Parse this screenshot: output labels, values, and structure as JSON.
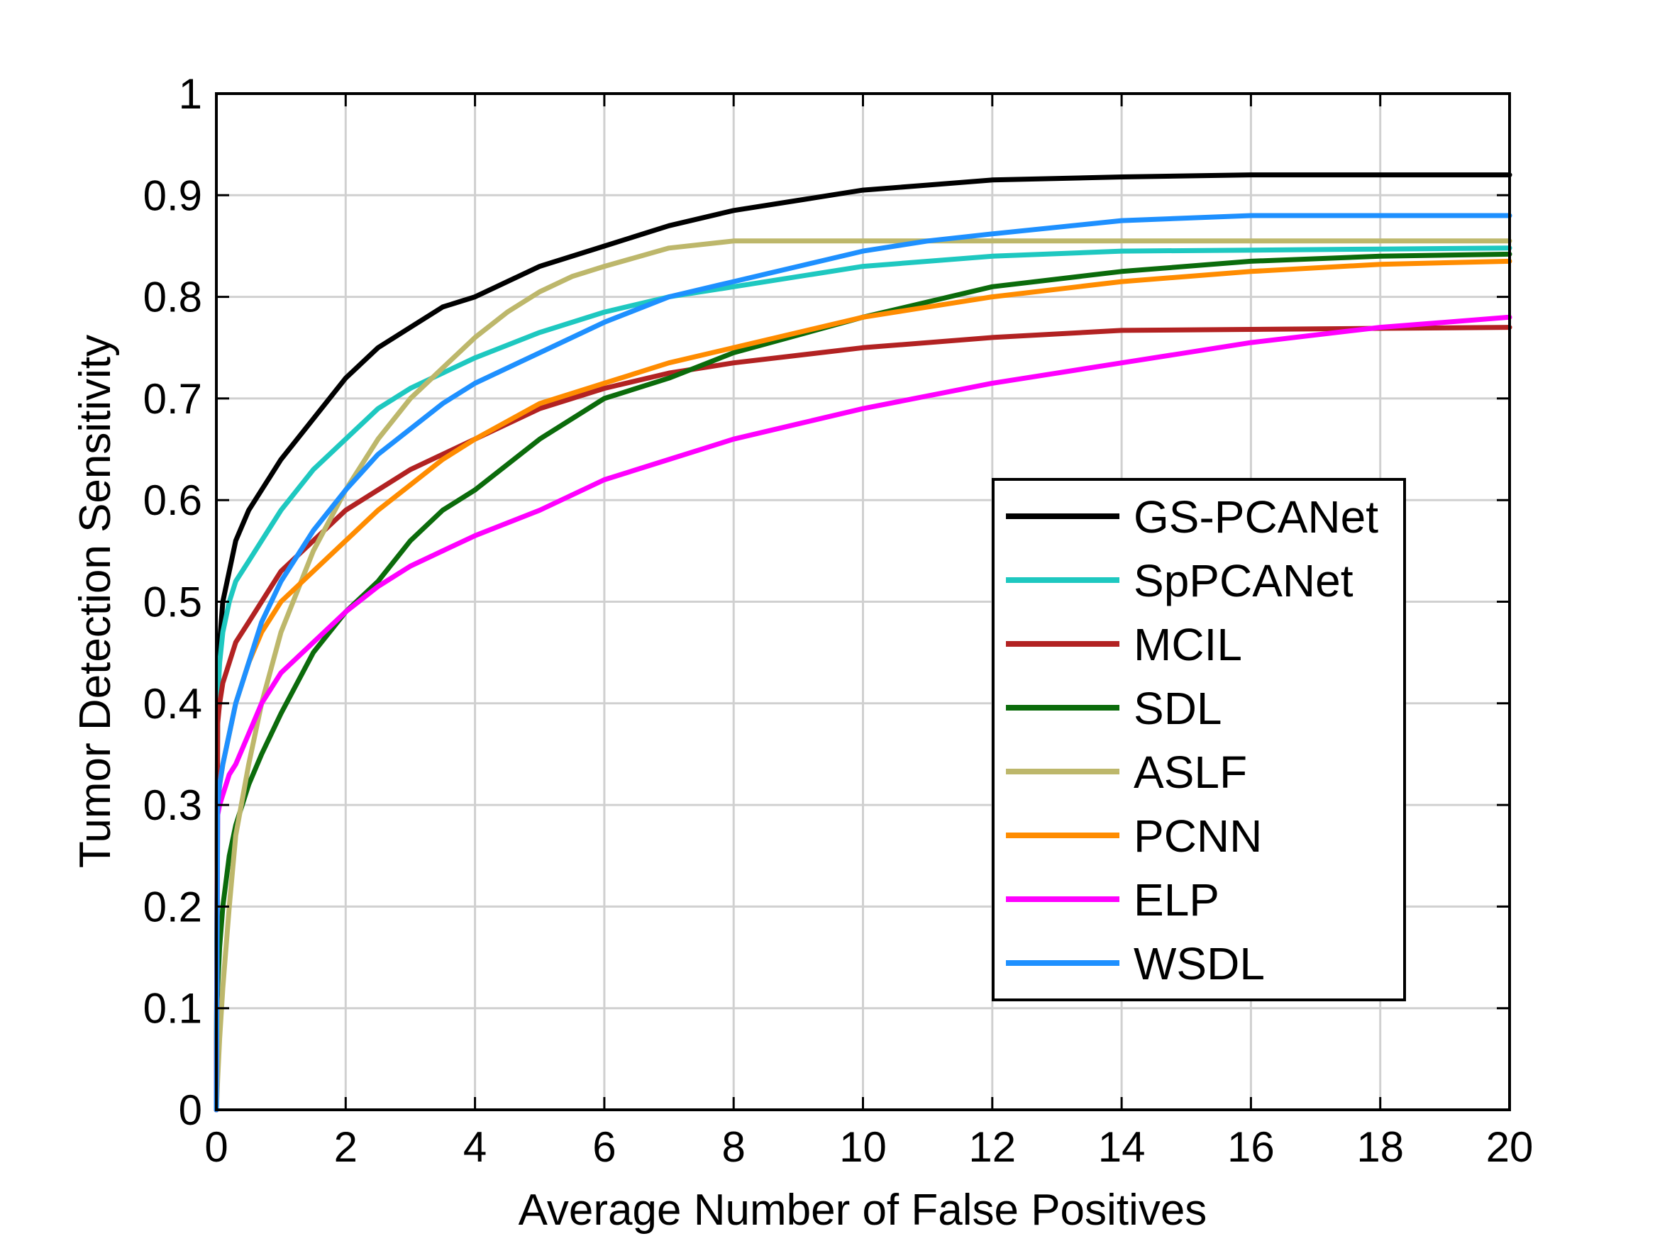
{
  "chart_data": {
    "type": "line",
    "xlabel": "Average Number of False Positives",
    "ylabel": "Tumor Detection Sensitivity",
    "xlim": [
      0,
      20
    ],
    "ylim": [
      0,
      1
    ],
    "xticks": [
      "0",
      "2",
      "4",
      "6",
      "8",
      "10",
      "12",
      "14",
      "16",
      "18",
      "20"
    ],
    "yticks": [
      "0",
      "0.1",
      "0.2",
      "0.3",
      "0.4",
      "0.5",
      "0.6",
      "0.7",
      "0.8",
      "0.9",
      "1"
    ],
    "grid": true,
    "legend_position": "right",
    "series": [
      {
        "name": "GS-PCANet",
        "color": "#000000",
        "x": [
          0,
          0.02,
          0.05,
          0.1,
          0.2,
          0.3,
          0.5,
          0.7,
          1.0,
          1.5,
          2.0,
          2.5,
          3.0,
          3.5,
          4.0,
          4.5,
          5.0,
          6.0,
          7.0,
          8.0,
          9.0,
          10.0,
          11.0,
          12.0,
          14.0,
          16.0,
          18.0,
          20.0
        ],
        "y": [
          0,
          0.42,
          0.46,
          0.5,
          0.53,
          0.56,
          0.59,
          0.61,
          0.64,
          0.68,
          0.72,
          0.75,
          0.77,
          0.79,
          0.8,
          0.815,
          0.83,
          0.85,
          0.87,
          0.885,
          0.895,
          0.905,
          0.91,
          0.915,
          0.918,
          0.92,
          0.92,
          0.92
        ]
      },
      {
        "name": "SpPCANet",
        "color": "#1ec8c0",
        "x": [
          0,
          0.02,
          0.05,
          0.1,
          0.2,
          0.3,
          0.5,
          0.7,
          1.0,
          1.5,
          2.0,
          2.5,
          3.0,
          3.5,
          4.0,
          5.0,
          6.0,
          7.0,
          8.0,
          10.0,
          12.0,
          14.0,
          16.0,
          18.0,
          20.0
        ],
        "y": [
          0,
          0.4,
          0.44,
          0.47,
          0.5,
          0.52,
          0.54,
          0.56,
          0.59,
          0.63,
          0.66,
          0.69,
          0.71,
          0.725,
          0.74,
          0.765,
          0.785,
          0.8,
          0.81,
          0.83,
          0.84,
          0.845,
          0.846,
          0.847,
          0.848
        ]
      },
      {
        "name": "MCIL",
        "color": "#b22222",
        "x": [
          0,
          0.02,
          0.05,
          0.1,
          0.2,
          0.3,
          0.5,
          0.7,
          1.0,
          1.5,
          2.0,
          2.5,
          3.0,
          3.5,
          4.0,
          5.0,
          6.0,
          7.0,
          8.0,
          10.0,
          12.0,
          14.0,
          16.0,
          18.0,
          20.0
        ],
        "y": [
          0,
          0.38,
          0.4,
          0.42,
          0.44,
          0.46,
          0.48,
          0.5,
          0.53,
          0.56,
          0.59,
          0.61,
          0.63,
          0.645,
          0.66,
          0.69,
          0.71,
          0.725,
          0.735,
          0.75,
          0.76,
          0.767,
          0.768,
          0.769,
          0.77
        ]
      },
      {
        "name": "SDL",
        "color": "#0b6b0b",
        "x": [
          0,
          0.02,
          0.05,
          0.1,
          0.2,
          0.3,
          0.5,
          0.7,
          1.0,
          1.5,
          2.0,
          2.5,
          3.0,
          3.5,
          4.0,
          5.0,
          6.0,
          7.0,
          8.0,
          10.0,
          12.0,
          14.0,
          16.0,
          18.0,
          20.0
        ],
        "y": [
          0,
          0.12,
          0.16,
          0.2,
          0.25,
          0.28,
          0.32,
          0.35,
          0.39,
          0.45,
          0.49,
          0.52,
          0.56,
          0.59,
          0.61,
          0.66,
          0.7,
          0.72,
          0.745,
          0.78,
          0.81,
          0.825,
          0.835,
          0.84,
          0.842
        ]
      },
      {
        "name": "ASLF",
        "color": "#bdb76b",
        "x": [
          0,
          0.02,
          0.05,
          0.1,
          0.2,
          0.3,
          0.5,
          0.7,
          1.0,
          1.5,
          2.0,
          2.5,
          3.0,
          3.5,
          4.0,
          4.5,
          5.0,
          5.5,
          6.0,
          7.0,
          8.0,
          10.0,
          12.0,
          14.0,
          16.0,
          18.0,
          20.0
        ],
        "y": [
          0,
          0.03,
          0.07,
          0.12,
          0.2,
          0.27,
          0.34,
          0.4,
          0.47,
          0.55,
          0.61,
          0.66,
          0.7,
          0.73,
          0.76,
          0.785,
          0.805,
          0.82,
          0.83,
          0.848,
          0.855,
          0.855,
          0.855,
          0.855,
          0.855,
          0.855,
          0.855
        ]
      },
      {
        "name": "PCNN",
        "color": "#ff8c00",
        "x": [
          0,
          0.02,
          0.05,
          0.1,
          0.2,
          0.3,
          0.5,
          0.7,
          1.0,
          1.5,
          2.0,
          2.5,
          3.0,
          3.5,
          4.0,
          5.0,
          6.0,
          7.0,
          8.0,
          10.0,
          12.0,
          14.0,
          16.0,
          18.0,
          20.0
        ],
        "y": [
          0,
          0.3,
          0.32,
          0.34,
          0.37,
          0.4,
          0.44,
          0.47,
          0.5,
          0.53,
          0.56,
          0.59,
          0.615,
          0.64,
          0.66,
          0.695,
          0.715,
          0.735,
          0.75,
          0.78,
          0.8,
          0.815,
          0.825,
          0.832,
          0.835
        ]
      },
      {
        "name": "ELP",
        "color": "#ff00ff",
        "x": [
          0,
          0.02,
          0.05,
          0.1,
          0.2,
          0.3,
          0.5,
          0.7,
          1.0,
          1.5,
          2.0,
          2.5,
          3.0,
          3.5,
          4.0,
          5.0,
          6.0,
          7.0,
          8.0,
          9.0,
          10.0,
          12.0,
          14.0,
          16.0,
          18.0,
          20.0
        ],
        "y": [
          0,
          0.29,
          0.3,
          0.31,
          0.33,
          0.34,
          0.37,
          0.4,
          0.43,
          0.46,
          0.49,
          0.515,
          0.535,
          0.55,
          0.565,
          0.59,
          0.62,
          0.64,
          0.66,
          0.675,
          0.69,
          0.715,
          0.735,
          0.755,
          0.77,
          0.78
        ]
      },
      {
        "name": "WSDL",
        "color": "#1e90ff",
        "x": [
          0,
          0.02,
          0.05,
          0.1,
          0.2,
          0.3,
          0.5,
          0.7,
          1.0,
          1.5,
          2.0,
          2.5,
          3.0,
          3.5,
          4.0,
          5.0,
          6.0,
          7.0,
          8.0,
          9.0,
          10.0,
          11.0,
          12.0,
          14.0,
          16.0,
          18.0,
          20.0
        ],
        "y": [
          0,
          0.3,
          0.32,
          0.34,
          0.37,
          0.4,
          0.44,
          0.48,
          0.52,
          0.57,
          0.61,
          0.645,
          0.67,
          0.695,
          0.715,
          0.745,
          0.775,
          0.8,
          0.815,
          0.83,
          0.845,
          0.855,
          0.862,
          0.875,
          0.88,
          0.88,
          0.88
        ]
      }
    ]
  }
}
